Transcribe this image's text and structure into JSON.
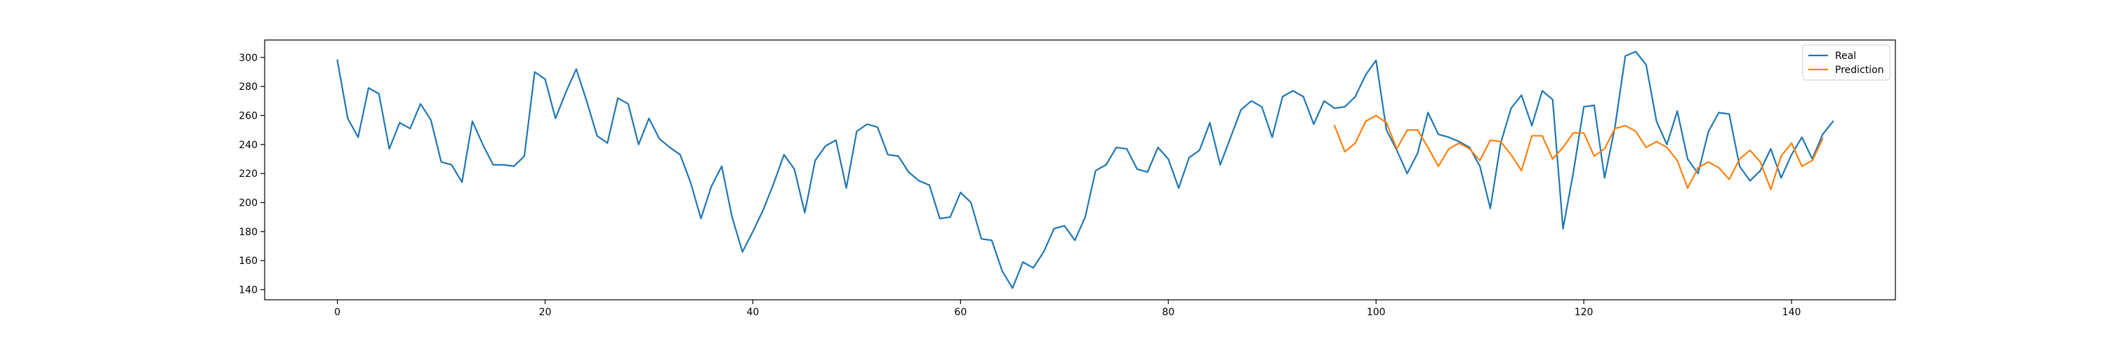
{
  "chart_data": {
    "type": "line",
    "title": "",
    "xlabel": "",
    "ylabel": "",
    "xlim": [
      -7,
      150
    ],
    "ylim": [
      133,
      312
    ],
    "xticks": [
      0,
      20,
      40,
      60,
      80,
      100,
      120,
      140
    ],
    "yticks": [
      140,
      160,
      180,
      200,
      220,
      240,
      260,
      280,
      300
    ],
    "grid": false,
    "legend_position": "top-right",
    "series": [
      {
        "name": "Real",
        "color": "#1f77b4",
        "x_start": 0,
        "values": [
          298,
          258,
          245,
          279,
          275,
          237,
          255,
          251,
          268,
          257,
          228,
          226,
          214,
          256,
          240,
          226,
          226,
          225,
          232,
          290,
          285,
          258,
          276,
          292,
          270,
          246,
          241,
          272,
          268,
          240,
          258,
          244,
          238,
          233,
          214,
          189,
          211,
          225,
          190,
          166,
          180,
          195,
          213,
          233,
          223,
          193,
          229,
          239,
          243,
          210,
          249,
          254,
          252,
          233,
          232,
          221,
          215,
          212,
          189,
          190,
          207,
          200,
          175,
          174,
          153,
          141,
          159,
          155,
          166,
          182,
          184,
          174,
          190,
          222,
          226,
          238,
          237,
          223,
          221,
          238,
          230,
          210,
          231,
          236,
          255,
          226,
          245,
          264,
          270,
          266,
          245,
          273,
          277,
          273,
          254,
          270,
          265,
          266,
          273,
          288,
          298,
          250,
          236,
          220,
          234,
          262,
          247,
          245,
          242,
          238,
          225,
          196,
          241,
          265,
          274,
          253,
          277,
          271,
          182,
          221,
          266,
          267,
          217,
          252,
          301,
          304,
          295,
          256,
          240,
          263,
          230,
          220,
          249,
          262,
          261,
          225,
          215,
          222,
          237,
          217,
          233,
          245,
          230,
          247,
          256
        ]
      },
      {
        "name": "Prediction",
        "color": "#ff7f0e",
        "x_start": 96,
        "values": [
          253,
          235,
          241,
          256,
          260,
          255,
          237,
          250,
          250,
          238,
          225,
          237,
          241,
          237,
          229,
          243,
          242,
          233,
          222,
          246,
          246,
          230,
          238,
          248,
          248,
          232,
          237,
          251,
          253,
          249,
          238,
          242,
          238,
          229,
          210,
          224,
          228,
          224,
          216,
          230,
          236,
          228,
          209,
          232,
          241,
          225,
          229,
          244
        ]
      }
    ]
  }
}
